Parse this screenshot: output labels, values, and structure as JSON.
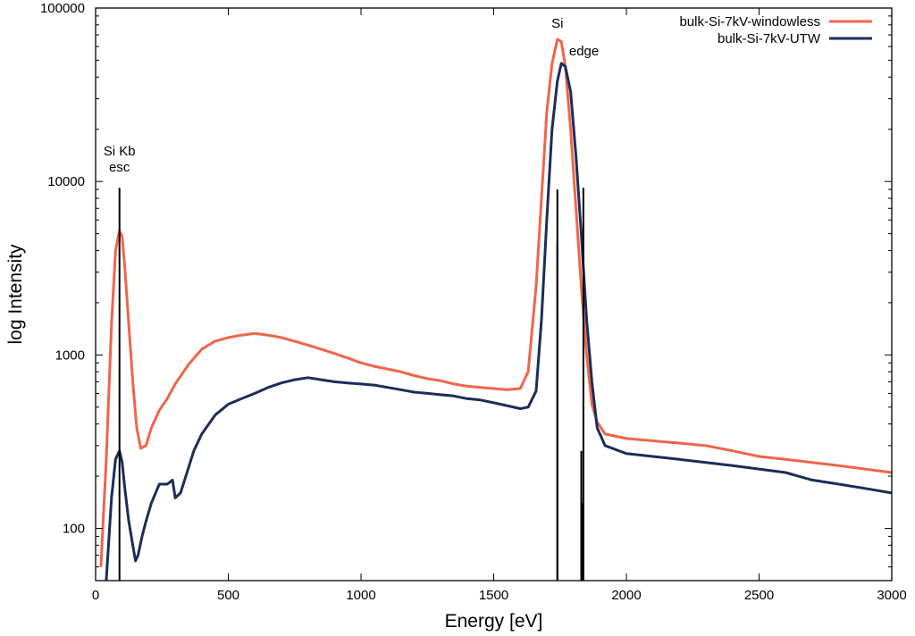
{
  "chart_data": {
    "type": "line",
    "xlabel": "Energy [eV]",
    "ylabel": "log Intensity",
    "xlim": [
      0,
      3000
    ],
    "ylim": [
      50,
      100000
    ],
    "yscale": "log",
    "grid": false,
    "legend_position": "top-right",
    "x_ticks": [
      0,
      500,
      1000,
      1500,
      2000,
      2500,
      3000
    ],
    "y_ticks": [
      100,
      1000,
      10000,
      100000
    ],
    "series": [
      {
        "name": "bulk-Si-7kV-windowless",
        "color": "#f0654a",
        "x": [
          20,
          40,
          60,
          75,
          90,
          100,
          110,
          125,
          140,
          155,
          170,
          190,
          210,
          240,
          270,
          300,
          350,
          400,
          450,
          500,
          550,
          600,
          650,
          700,
          750,
          800,
          850,
          900,
          950,
          1000,
          1050,
          1100,
          1150,
          1200,
          1250,
          1300,
          1350,
          1400,
          1450,
          1500,
          1550,
          1600,
          1630,
          1660,
          1680,
          1700,
          1720,
          1740,
          1755,
          1770,
          1790,
          1810,
          1830,
          1850,
          1870,
          1890,
          1920,
          2000,
          2100,
          2200,
          2300,
          2400,
          2500,
          2600,
          2700,
          2800,
          2900,
          3000
        ],
        "y": [
          60,
          250,
          1500,
          4000,
          5200,
          4800,
          3200,
          1500,
          700,
          380,
          290,
          300,
          380,
          480,
          560,
          680,
          880,
          1080,
          1200,
          1260,
          1300,
          1330,
          1300,
          1260,
          1200,
          1140,
          1080,
          1020,
          960,
          900,
          860,
          830,
          800,
          760,
          730,
          710,
          680,
          660,
          650,
          640,
          630,
          640,
          800,
          2500,
          8000,
          25000,
          48000,
          66000,
          64000,
          46000,
          20000,
          7000,
          2500,
          1000,
          520,
          410,
          350,
          330,
          320,
          310,
          300,
          280,
          260,
          250,
          240,
          230,
          220,
          210
        ]
      },
      {
        "name": "bulk-Si-7kV-UTW",
        "color": "#1b2d58",
        "x": [
          40,
          60,
          75,
          90,
          100,
          110,
          125,
          140,
          150,
          160,
          175,
          190,
          210,
          240,
          270,
          290,
          300,
          320,
          340,
          370,
          400,
          450,
          500,
          550,
          600,
          650,
          700,
          750,
          800,
          850,
          900,
          950,
          1000,
          1050,
          1100,
          1150,
          1200,
          1250,
          1300,
          1350,
          1400,
          1450,
          1500,
          1550,
          1600,
          1630,
          1660,
          1680,
          1700,
          1720,
          1740,
          1755,
          1770,
          1790,
          1810,
          1830,
          1850,
          1870,
          1890,
          1920,
          2000,
          2100,
          2200,
          2300,
          2400,
          2500,
          2600,
          2700,
          2800,
          2900,
          3000
        ],
        "y": [
          50,
          150,
          250,
          280,
          240,
          170,
          110,
          80,
          65,
          70,
          90,
          110,
          140,
          180,
          180,
          190,
          150,
          160,
          200,
          280,
          350,
          450,
          520,
          560,
          600,
          650,
          690,
          720,
          740,
          720,
          700,
          690,
          680,
          670,
          650,
          630,
          610,
          600,
          590,
          580,
          560,
          550,
          530,
          510,
          490,
          500,
          620,
          1600,
          6000,
          20000,
          38000,
          48000,
          46000,
          33000,
          14000,
          5000,
          1600,
          700,
          380,
          300,
          270,
          260,
          250,
          240,
          230,
          220,
          210,
          190,
          180,
          170,
          160
        ]
      }
    ],
    "markers": [
      {
        "x": 90,
        "y": 9200,
        "label_lines": [
          "Si Kb",
          "esc"
        ]
      },
      {
        "x": 1740,
        "y": 9000,
        "label_lines": [
          "Si"
        ]
      },
      {
        "x": 1740,
        "y": 4500
      },
      {
        "x": 1838,
        "y": 9200,
        "label_lines": [
          "edge"
        ]
      },
      {
        "x": 1830,
        "y": 280
      },
      {
        "x": 1835,
        "y": 140
      }
    ]
  }
}
